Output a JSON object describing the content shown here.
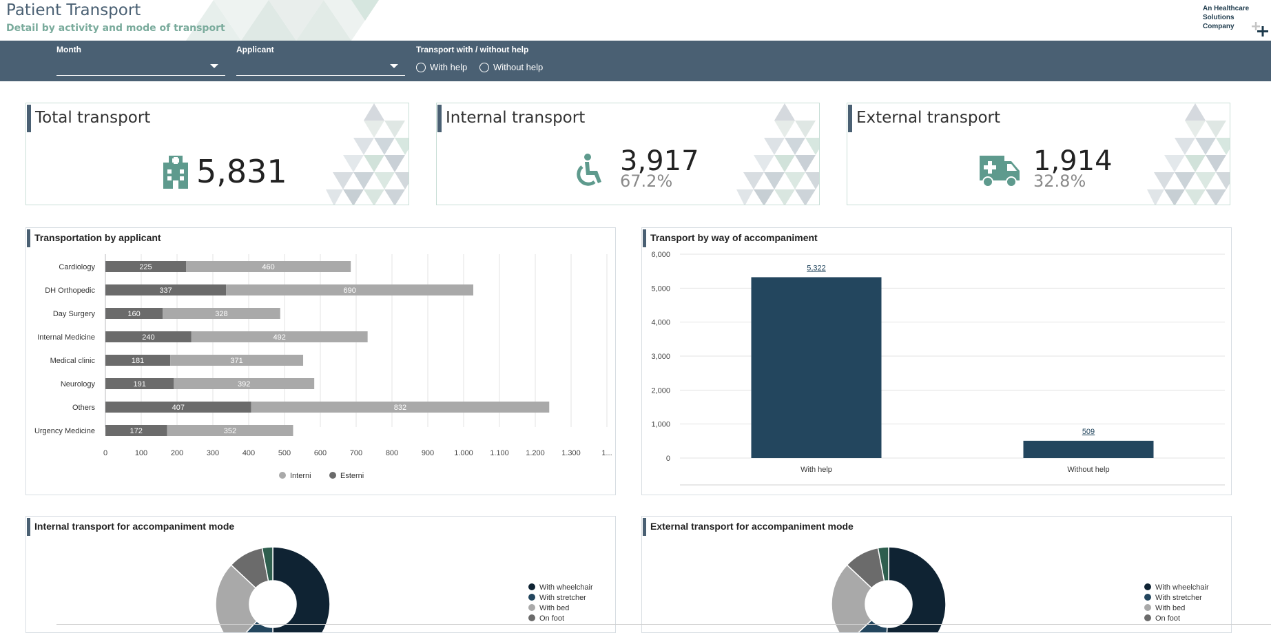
{
  "header": {
    "title": "Patient Transport",
    "subtitle": "Detail by activity and mode of transport",
    "company_lines": [
      "An Healthcare",
      "Solutions",
      "Company"
    ]
  },
  "filters": {
    "month_label": "Month",
    "month_value": "",
    "applicant_label": "Applicant",
    "applicant_value": "",
    "help_label": "Transport with / without help",
    "options": [
      "With help",
      "Without help"
    ]
  },
  "kpis": [
    {
      "title": "Total transport",
      "value": "5,831",
      "pct": "",
      "icon": "hospital-icon"
    },
    {
      "title": "Internal transport",
      "value": "3,917",
      "pct": "67.2%",
      "icon": "wheelchair-icon"
    },
    {
      "title": "External transport",
      "value": "1,914",
      "pct": "32.8%",
      "icon": "ambulance-icon"
    }
  ],
  "panels": {
    "by_applicant": "Transportation by applicant",
    "by_accompaniment": "Transport by way of accompaniment",
    "internal_mode": "Internal transport for accompaniment mode",
    "external_mode": "External transport for accompaniment mode"
  },
  "colors": {
    "brand": "#4a6073",
    "accent": "#7aab9c",
    "navy": "#23465e",
    "dark": "#0f2333",
    "esterni": "#6b6b6b",
    "interni": "#a9a9a9"
  },
  "chart_data": [
    {
      "type": "bar",
      "orientation": "horizontal",
      "stacked": true,
      "categories": [
        "Cardiology",
        "DH Orthopedic",
        "Day Surgery",
        "Internal Medicine",
        "Medical clinic",
        "Neurology",
        "Others",
        "Urgency Medicine"
      ],
      "series": [
        {
          "name": "Esterni",
          "color": "#6b6b6b",
          "values": [
            225,
            337,
            160,
            240,
            181,
            191,
            407,
            172
          ]
        },
        {
          "name": "Interni",
          "color": "#a9a9a9",
          "values": [
            460,
            690,
            328,
            492,
            371,
            392,
            832,
            352
          ]
        }
      ],
      "x_ticks": [
        "0",
        "100",
        "200",
        "300",
        "400",
        "500",
        "600",
        "700",
        "800",
        "900",
        "1.000",
        "1.100",
        "1.200",
        "1.300",
        "1..."
      ],
      "xlim": [
        0,
        1400
      ],
      "grid": true,
      "legend": [
        "Interni",
        "Esterni"
      ],
      "legend_position": "bottom"
    },
    {
      "type": "bar",
      "categories": [
        "With help",
        "Without help"
      ],
      "values": [
        5322,
        509
      ],
      "value_labels": [
        "5,322",
        "509"
      ],
      "ylim": [
        0,
        6000
      ],
      "y_ticks": [
        "0",
        "1,000",
        "2,000",
        "3,000",
        "4,000",
        "5,000",
        "6,000"
      ],
      "color": "#23465e",
      "grid": true
    },
    {
      "type": "pie",
      "donut": true,
      "slices": [
        {
          "label": "With wheelchair",
          "value": 50,
          "color": "#0f2333"
        },
        {
          "label": "With stretcher",
          "value": 12,
          "color": "#23465e"
        },
        {
          "label": "With bed",
          "value": 25,
          "color": "#a9a9a9"
        },
        {
          "label": "On foot",
          "value": 10,
          "color": "#6b6b6b"
        },
        {
          "label": "",
          "value": 3,
          "color": "#2e5e4e"
        }
      ]
    },
    {
      "type": "pie",
      "donut": true,
      "slices": [
        {
          "label": "With wheelchair",
          "value": 51,
          "color": "#0f2333"
        },
        {
          "label": "With stretcher",
          "value": 12,
          "color": "#23465e"
        },
        {
          "label": "With bed",
          "value": 24,
          "color": "#a9a9a9"
        },
        {
          "label": "On foot",
          "value": 10,
          "color": "#6b6b6b"
        },
        {
          "label": "",
          "value": 3,
          "color": "#2e5e4e"
        }
      ]
    }
  ]
}
